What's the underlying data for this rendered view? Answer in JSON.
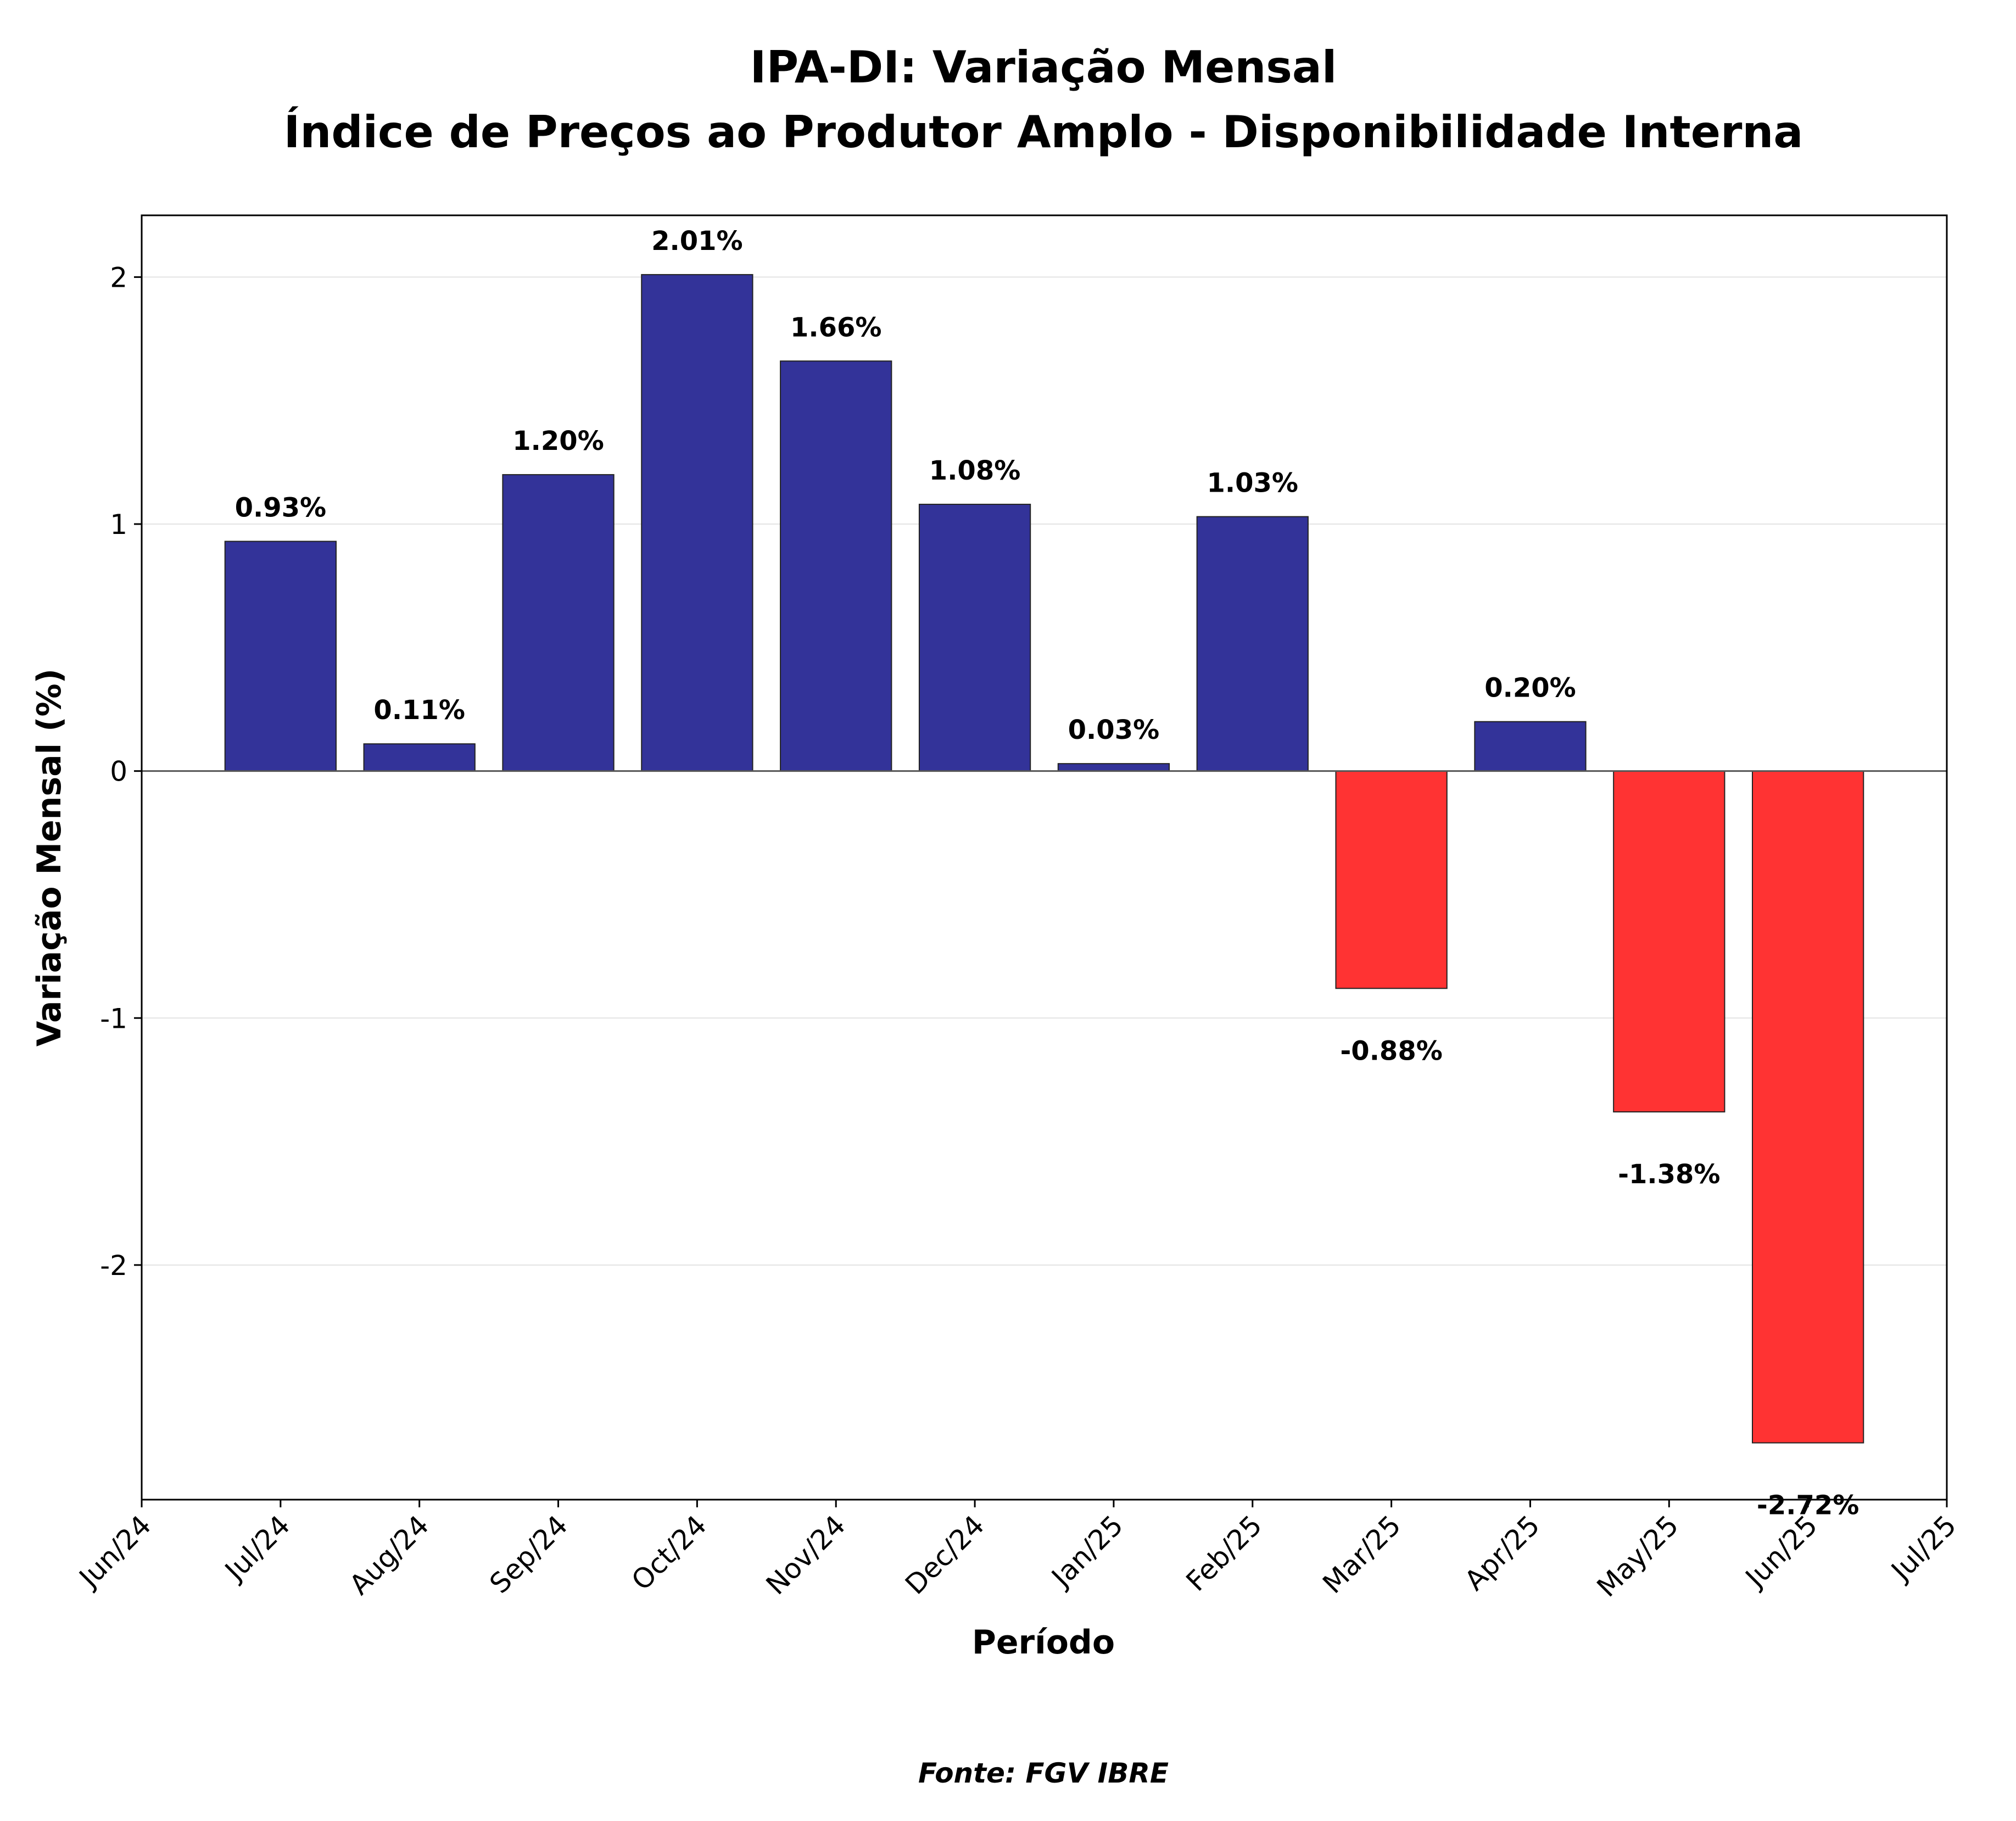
{
  "chart_data": {
    "type": "bar",
    "title_lines": [
      "IPA-DI: Variação Mensal",
      "Índice de Preços ao Produtor Amplo - Disponibilidade Interna"
    ],
    "xlabel": "Período",
    "ylabel": "Variação Mensal (%)",
    "source": "Fonte: FGV IBRE",
    "x_ticks": [
      "Jun/24",
      "Jul/24",
      "Aug/24",
      "Sep/24",
      "Oct/24",
      "Nov/24",
      "Dec/24",
      "Jan/25",
      "Feb/25",
      "Mar/25",
      "Apr/25",
      "May/25",
      "Jun/25",
      "Jul/25"
    ],
    "y_ticks": [
      "2",
      "1",
      "0",
      "-1",
      "-2"
    ],
    "y_tick_values": [
      2,
      1,
      0,
      -1,
      -2
    ],
    "ylim": [
      -2.95,
      2.25
    ],
    "grid": true,
    "categories": [
      "Jul/24",
      "Aug/24",
      "Sep/24",
      "Oct/24",
      "Nov/24",
      "Dec/24",
      "Jan/25",
      "Feb/25",
      "Mar/25",
      "Apr/25",
      "May/25",
      "Jun/25"
    ],
    "dates": [
      "2024-07-01",
      "2024-08-01",
      "2024-09-01",
      "2024-10-01",
      "2024-11-01",
      "2024-12-01",
      "2025-01-01",
      "2025-02-01",
      "2025-03-01",
      "2025-04-01",
      "2025-05-01",
      "2025-06-01"
    ],
    "values": [
      0.93,
      0.11,
      1.2,
      2.01,
      1.66,
      1.08,
      0.03,
      1.03,
      -0.88,
      0.2,
      -1.38,
      -2.72
    ],
    "value_labels": [
      "0.93%",
      "0.11%",
      "1.20%",
      "2.01%",
      "1.66%",
      "1.08%",
      "0.03%",
      "1.03%",
      "-0.88%",
      "0.20%",
      "-1.38%",
      "-2.72%"
    ],
    "colors": {
      "positive": "#333399",
      "negative": "#ff3333",
      "edge": "#222222"
    }
  }
}
